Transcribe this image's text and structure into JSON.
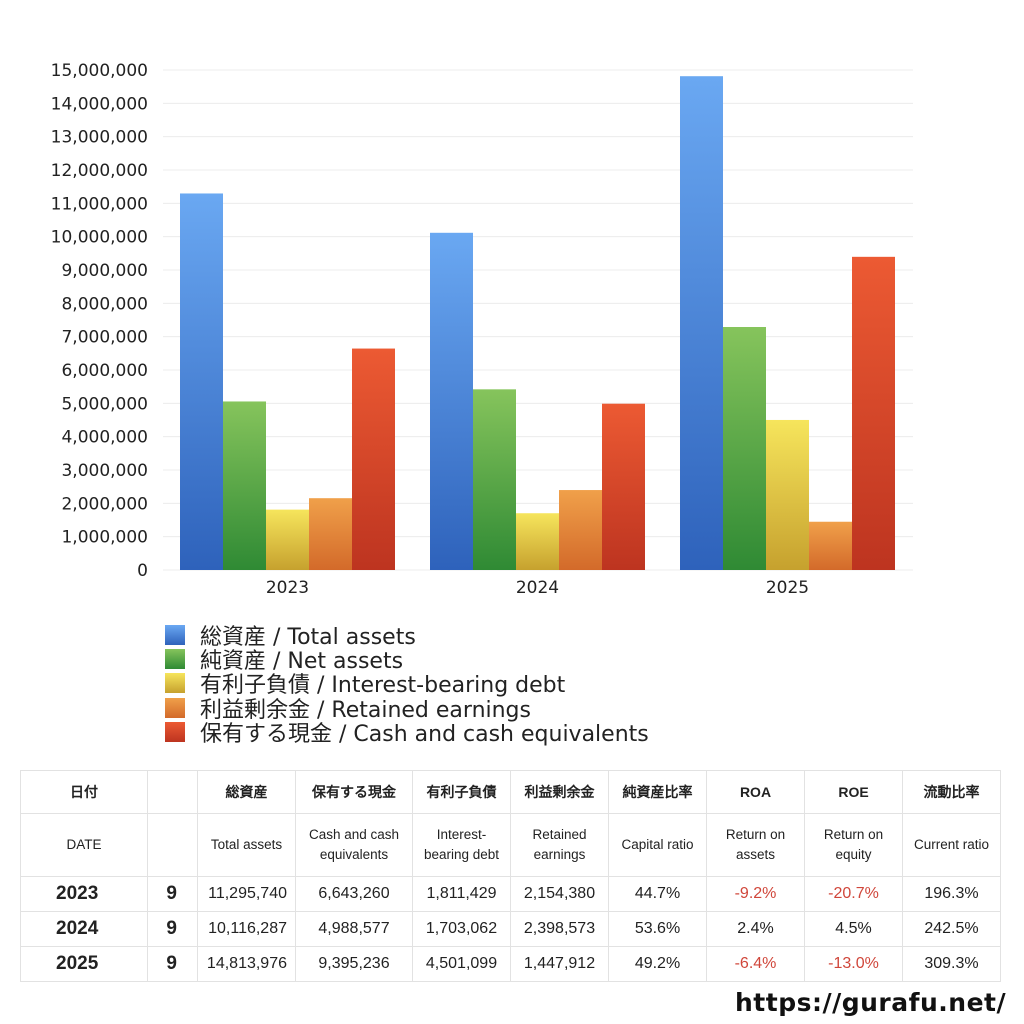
{
  "chart_data": {
    "type": "bar",
    "categories": [
      "2023",
      "2024",
      "2025"
    ],
    "ylim": [
      0,
      15000000
    ],
    "yticks": [
      "0",
      "1,000,000",
      "2,000,000",
      "3,000,000",
      "4,000,000",
      "5,000,000",
      "6,000,000",
      "7,000,000",
      "8,000,000",
      "9,000,000",
      "10,000,000",
      "11,000,000",
      "12,000,000",
      "13,000,000",
      "14,000,000",
      "15,000,000"
    ],
    "grid": true,
    "legend_position": "bottom",
    "series": [
      {
        "name": "総資産 / Total assets",
        "values": [
          11295740,
          10116287,
          14813976
        ],
        "color_top": "#6aa8f2",
        "color_bottom": "#2e62bb"
      },
      {
        "name": "純資産 / Net assets",
        "values": [
          5056000,
          5420000,
          7290000
        ],
        "color_top": "#86c45c",
        "color_bottom": "#2f8a34"
      },
      {
        "name": "有利子負債 / Interest-bearing debt",
        "values": [
          1811429,
          1703062,
          4501099
        ],
        "color_top": "#f6e55c",
        "color_bottom": "#c6a12e"
      },
      {
        "name": "利益剰余金 / Retained earnings",
        "values": [
          2154380,
          2398573,
          1447912
        ],
        "color_top": "#f0a04a",
        "color_bottom": "#d36a2a"
      },
      {
        "name": "保有する現金 /  Cash and cash equivalents",
        "values": [
          6643260,
          4988577,
          9395236
        ],
        "color_top": "#ec5a33",
        "color_bottom": "#bd3420"
      }
    ]
  },
  "table": {
    "header_ja": [
      "日付",
      "",
      "総資産",
      "保有する現金",
      "有利子負債",
      "利益剰余金",
      "純資産比率",
      "ROA",
      "ROE",
      "流動比率"
    ],
    "header_en": [
      "DATE",
      "",
      "Total assets",
      "Cash and cash equivalents",
      "Interest-bearing debt",
      "Retained earnings",
      "Capital ratio",
      "Return on assets",
      "Return on equity",
      "Current ratio"
    ],
    "rows": [
      {
        "year": "2023",
        "month": "9",
        "total_assets": "11,295,740",
        "cash": "6,643,260",
        "debt": "1,811,429",
        "retained": "2,154,380",
        "capital_ratio": "44.7%",
        "roa": "-9.2%",
        "roe": "-20.7%",
        "current_ratio": "196.3%"
      },
      {
        "year": "2024",
        "month": "9",
        "total_assets": "10,116,287",
        "cash": "4,988,577",
        "debt": "1,703,062",
        "retained": "2,398,573",
        "capital_ratio": "53.6%",
        "roa": "2.4%",
        "roe": "4.5%",
        "current_ratio": "242.5%"
      },
      {
        "year": "2025",
        "month": "9",
        "total_assets": "14,813,976",
        "cash": "9,395,236",
        "debt": "4,501,099",
        "retained": "1,447,912",
        "capital_ratio": "49.2%",
        "roa": "-6.4%",
        "roe": "-13.0%",
        "current_ratio": "309.3%"
      }
    ],
    "negative_color": "#d0463a"
  },
  "site_url": "https://gurafu.net/"
}
